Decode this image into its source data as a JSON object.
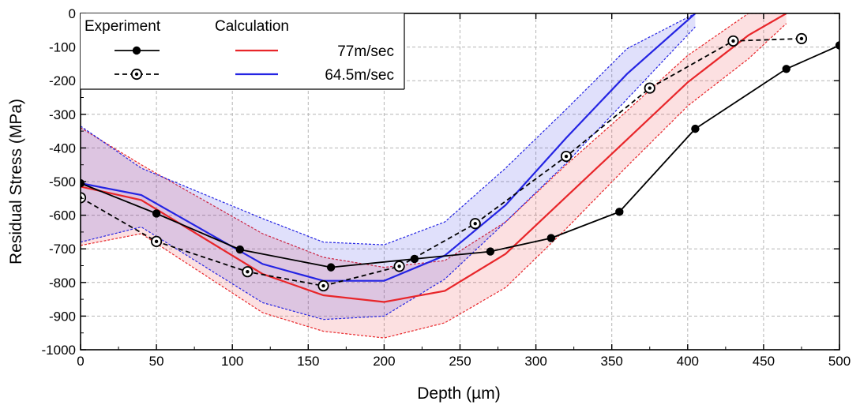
{
  "chart_data": {
    "type": "line",
    "title": "",
    "xlabel": "Depth (µm)",
    "ylabel": "Residual Stress (MPa)",
    "xlim": [
      0,
      500
    ],
    "ylim": [
      -1000,
      0
    ],
    "xticks": [
      0,
      50,
      100,
      150,
      200,
      250,
      300,
      350,
      400,
      450,
      500
    ],
    "yticks": [
      0,
      -100,
      -200,
      -300,
      -400,
      -500,
      -600,
      -700,
      -800,
      -900,
      -1000
    ],
    "grid": true,
    "legend": {
      "placement": "top-left",
      "experiment_header": "Experiment",
      "calculation_header": "Calculation"
    },
    "calculation": [
      {
        "name": "77m/sec",
        "color": "#e8262a",
        "x": [
          0,
          40,
          120,
          160,
          200,
          240,
          280,
          320,
          360,
          400,
          440,
          465
        ],
        "mean": [
          -515,
          -555,
          -775,
          -838,
          -858,
          -825,
          -715,
          -545,
          -375,
          -205,
          -65,
          0
        ],
        "lower": [
          -690,
          -655,
          -890,
          -945,
          -965,
          -920,
          -815,
          -640,
          -455,
          -275,
          -135,
          -30
        ],
        "upper": [
          -340,
          -450,
          -655,
          -725,
          -755,
          -735,
          -620,
          -450,
          -290,
          -125,
          0,
          0
        ]
      },
      {
        "name": "64.5m/sec",
        "color": "#2424e3",
        "x": [
          0,
          40,
          120,
          160,
          200,
          240,
          280,
          320,
          360,
          405
        ],
        "mean": [
          -505,
          -540,
          -745,
          -795,
          -795,
          -720,
          -570,
          -370,
          -180,
          0
        ],
        "lower": [
          -680,
          -635,
          -860,
          -910,
          -900,
          -790,
          -620,
          -445,
          -255,
          -40
        ],
        "upper": [
          -335,
          -460,
          -610,
          -680,
          -688,
          -620,
          -460,
          -285,
          -105,
          0
        ]
      }
    ],
    "experiment": [
      {
        "series_index": 0,
        "marker": "filled-circle",
        "line_style": "solid",
        "color": "#000000",
        "x": [
          0,
          50,
          105,
          165,
          220,
          270,
          310,
          355,
          405,
          465,
          500
        ],
        "y": [
          -505,
          -595,
          -702,
          -755,
          -730,
          -708,
          -668,
          -590,
          -343,
          -165,
          -95
        ]
      },
      {
        "series_index": 1,
        "marker": "open-circle",
        "line_style": "dashed",
        "color": "#000000",
        "x": [
          0,
          50,
          110,
          160,
          210,
          260,
          320,
          375,
          430,
          475
        ],
        "y": [
          -548,
          -678,
          -768,
          -810,
          -752,
          -625,
          -425,
          -222,
          -82,
          -75
        ]
      }
    ]
  }
}
